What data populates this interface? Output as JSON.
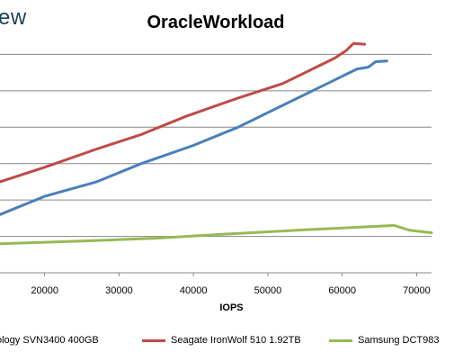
{
  "brand_text": "ew",
  "chart_data": {
    "type": "line",
    "title": "OracleWorkload",
    "xlabel": "IOPS",
    "ylabel": "",
    "xlim": [
      14000,
      72000
    ],
    "ylim": [
      0,
      70
    ],
    "x_ticks": [
      20000,
      30000,
      40000,
      50000,
      60000,
      70000
    ],
    "y_gridlines": [
      10,
      20,
      30,
      40,
      50,
      60
    ],
    "grid": true,
    "legend_position": "bottom",
    "series": [
      {
        "name": "ology SVN3400 400GB",
        "color": "#4a7ebb",
        "points": [
          [
            14000,
            16
          ],
          [
            20000,
            21
          ],
          [
            27000,
            25
          ],
          [
            33000,
            30
          ],
          [
            40000,
            35
          ],
          [
            46000,
            40
          ],
          [
            52000,
            46
          ],
          [
            57000,
            51
          ],
          [
            60000,
            54
          ],
          [
            62000,
            56
          ],
          [
            63500,
            56.5
          ],
          [
            64500,
            58
          ],
          [
            66000,
            58.2
          ]
        ]
      },
      {
        "name": "Seagate IronWolf 510 1.92TB",
        "color": "#be4b48",
        "points": [
          [
            14000,
            25
          ],
          [
            20000,
            29
          ],
          [
            27000,
            34
          ],
          [
            33000,
            38
          ],
          [
            39000,
            43
          ],
          [
            46000,
            48
          ],
          [
            52000,
            52
          ],
          [
            56000,
            56
          ],
          [
            59000,
            59
          ],
          [
            60500,
            61
          ],
          [
            61500,
            63
          ],
          [
            63000,
            62.8
          ]
        ]
      },
      {
        "name": "Samsung DCT983",
        "color": "#98b954",
        "points": [
          [
            14000,
            8
          ],
          [
            25000,
            8.7
          ],
          [
            35000,
            9.5
          ],
          [
            45000,
            10.7
          ],
          [
            55000,
            11.8
          ],
          [
            65000,
            12.8
          ],
          [
            67000,
            13
          ],
          [
            69000,
            11.7
          ],
          [
            72000,
            11
          ]
        ]
      }
    ]
  }
}
